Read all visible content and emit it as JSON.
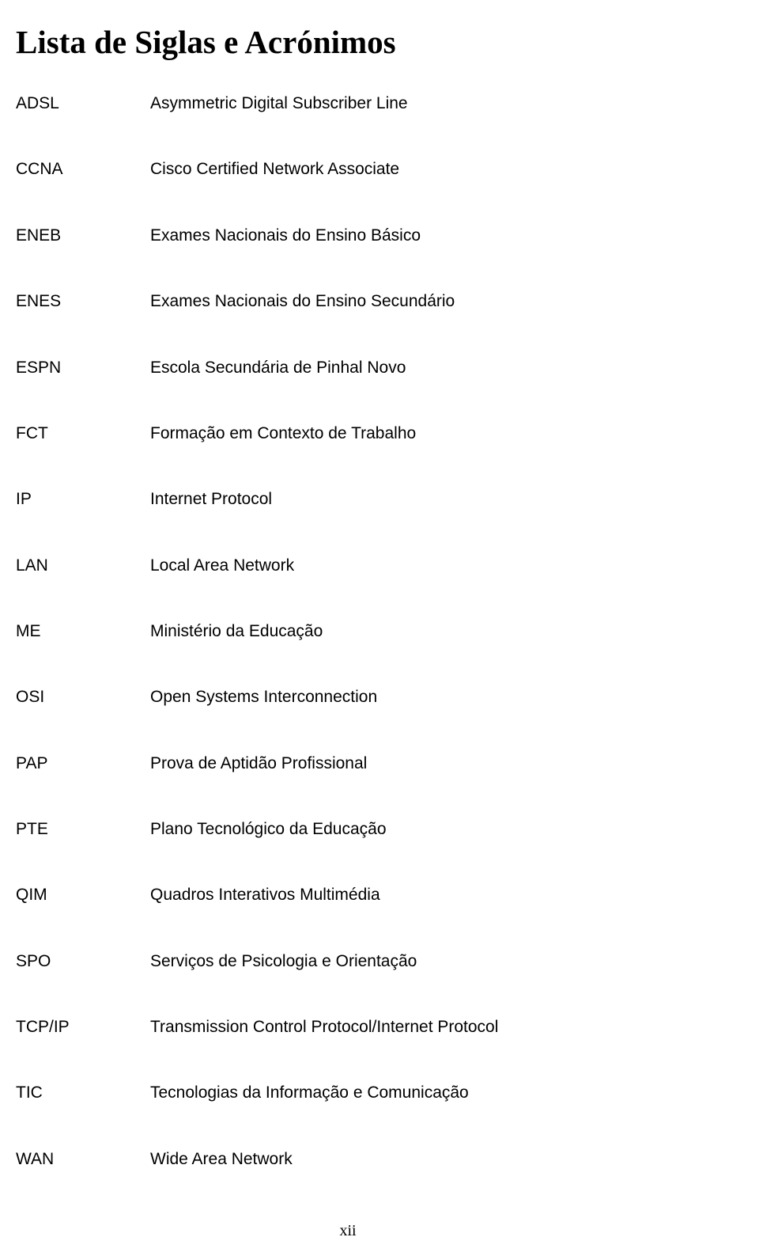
{
  "colors": {
    "text": "#000000",
    "background": "#ffffff"
  },
  "typography": {
    "title_font": "Times New Roman",
    "title_size_pt": 30,
    "title_weight": "bold",
    "body_font": "Arial",
    "body_size_pt": 16
  },
  "title": "Lista de Siglas e Acrónimos",
  "entries": [
    {
      "acronym": "ADSL",
      "definition": "Asymmetric Digital Subscriber Line"
    },
    {
      "acronym": "CCNA",
      "definition": "Cisco Certified Network Associate"
    },
    {
      "acronym": "ENEB",
      "definition": "Exames Nacionais do Ensino Básico"
    },
    {
      "acronym": "ENES",
      "definition": "Exames Nacionais do Ensino Secundário"
    },
    {
      "acronym": "ESPN",
      "definition": "Escola Secundária de Pinhal Novo"
    },
    {
      "acronym": "FCT",
      "definition": "Formação em Contexto de Trabalho"
    },
    {
      "acronym": "IP",
      "definition": "Internet Protocol"
    },
    {
      "acronym": "LAN",
      "definition": "Local Area Network"
    },
    {
      "acronym": "ME",
      "definition": "Ministério da Educação"
    },
    {
      "acronym": "OSI",
      "definition": "Open Systems Interconnection"
    },
    {
      "acronym": "PAP",
      "definition": "Prova de Aptidão Profissional"
    },
    {
      "acronym": "PTE",
      "definition": "Plano Tecnológico da Educação"
    },
    {
      "acronym": "QIM",
      "definition": "Quadros Interativos Multimédia"
    },
    {
      "acronym": "SPO",
      "definition": "Serviços de Psicologia e Orientação"
    },
    {
      "acronym": "TCP/IP",
      "definition": "Transmission Control Protocol/Internet Protocol"
    },
    {
      "acronym": "TIC",
      "definition": "Tecnologias da Informação e Comunicação"
    },
    {
      "acronym": "WAN",
      "definition": "Wide Area Network"
    }
  ],
  "page_number": "xii"
}
